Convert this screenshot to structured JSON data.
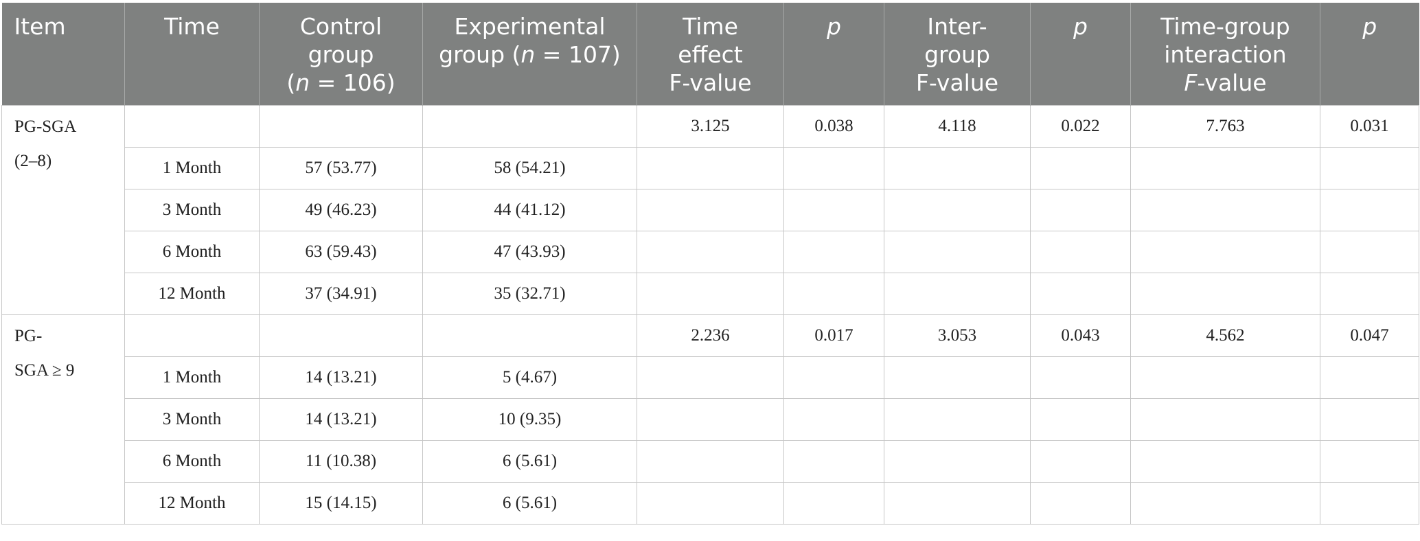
{
  "headers": {
    "item": "Item",
    "time": "Time",
    "control_l1": "Control",
    "control_l2": "group",
    "control_n_pre": "(",
    "control_n_var": "n",
    "control_n_post": " = 106)",
    "experimental_l1": "Experimental",
    "experimental_l2_pre": "group (",
    "experimental_n_var": "n",
    "experimental_l2_post": " = 107)",
    "time_effect_l1": "Time",
    "time_effect_l2": "effect",
    "time_effect_l3": "F-value",
    "p1": "p",
    "intergroup_l1": "Inter-",
    "intergroup_l2": "group",
    "intergroup_l3": "F-value",
    "p2": "p",
    "interaction_l1": "Time-group",
    "interaction_l2": "interaction",
    "interaction_f": "F",
    "interaction_l3_post": "-value",
    "p3": "p"
  },
  "groups": [
    {
      "item_line1": "PG-SGA",
      "item_line2": "(2–8)",
      "stats": {
        "time_effect_f": "3.125",
        "time_p": "0.038",
        "intergroup_f": "4.118",
        "intergroup_p": "0.022",
        "interaction_f": "7.763",
        "interaction_p": "0.031"
      },
      "rows": [
        {
          "time": "1 Month",
          "control": "57 (53.77)",
          "experimental": "58 (54.21)"
        },
        {
          "time": "3 Month",
          "control": "49 (46.23)",
          "experimental": "44 (41.12)"
        },
        {
          "time": "6 Month",
          "control": "63 (59.43)",
          "experimental": "47 (43.93)"
        },
        {
          "time": "12 Month",
          "control": "37 (34.91)",
          "experimental": "35 (32.71)"
        }
      ]
    },
    {
      "item_line1": "PG-",
      "item_line2": "SGA ≥ 9",
      "stats": {
        "time_effect_f": "2.236",
        "time_p": "0.017",
        "intergroup_f": "3.053",
        "intergroup_p": "0.043",
        "interaction_f": "4.562",
        "interaction_p": "0.047"
      },
      "rows": [
        {
          "time": "1 Month",
          "control": "14 (13.21)",
          "experimental": "5 (4.67)"
        },
        {
          "time": "3 Month",
          "control": "14 (13.21)",
          "experimental": "10 (9.35)"
        },
        {
          "time": "6 Month",
          "control": "11 (10.38)",
          "experimental": "6 (5.61)"
        },
        {
          "time": "12 Month",
          "control": "15 (14.15)",
          "experimental": "6 (5.61)"
        }
      ]
    }
  ]
}
